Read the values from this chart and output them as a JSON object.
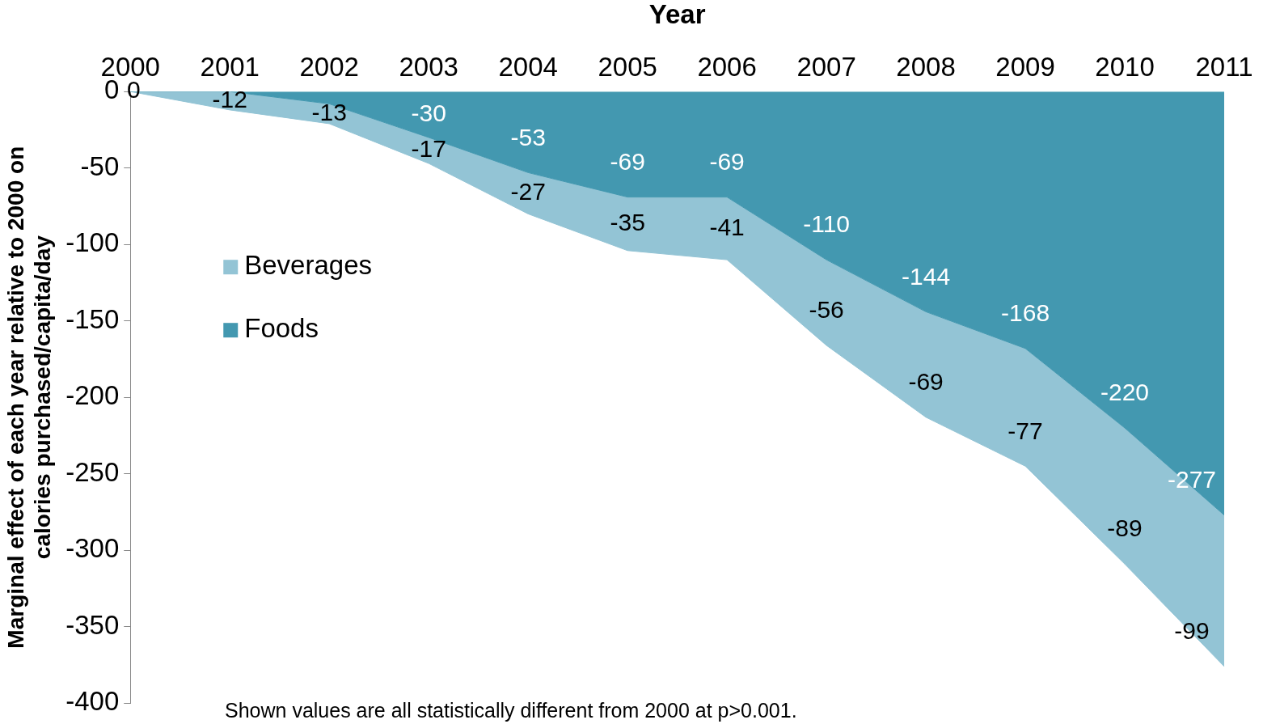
{
  "chart_data": {
    "type": "area",
    "stacked": true,
    "xlabel": "Year",
    "ylabel": "Marginal effect of each year relative to 2000 on calories purchased/capita/day",
    "categories": [
      "2000",
      "2001",
      "2002",
      "2003",
      "2004",
      "2005",
      "2006",
      "2007",
      "2008",
      "2009",
      "2010",
      "2011"
    ],
    "series": [
      {
        "name": "Foods",
        "color": "#4398b0",
        "values": [
          0,
          0,
          -8,
          -30,
          -53,
          -69,
          -69,
          -110,
          -144,
          -168,
          -220,
          -277
        ],
        "value_labels": [
          null,
          null,
          null,
          "-30",
          "-53",
          "-69",
          "-69",
          "-110",
          "-144",
          "-168",
          "-220",
          "-277"
        ]
      },
      {
        "name": "Beverages",
        "color": "#93c4d5",
        "values": [
          0,
          -12,
          -13,
          -17,
          -27,
          -35,
          -41,
          -56,
          -69,
          -77,
          -89,
          -99
        ],
        "value_labels": [
          "0",
          "-12",
          "-13",
          "-17",
          "-27",
          "-35",
          "-41",
          "-56",
          "-69",
          "-77",
          "-89",
          "-99"
        ]
      }
    ],
    "ylim": [
      -400,
      0
    ],
    "yticks": [
      -400,
      -350,
      -300,
      -250,
      -200,
      -150,
      -100,
      -50,
      0
    ],
    "grid": false,
    "legend": "left",
    "annotations": [
      "Shown values are all statistically different from 2000 at p>0.001."
    ]
  }
}
